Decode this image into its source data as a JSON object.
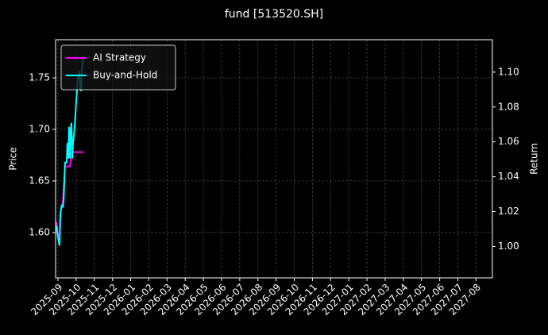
{
  "chart_data": {
    "type": "line",
    "title": "fund [513520.SH]",
    "ylabel": "Price",
    "y2label": "Return",
    "grid": true,
    "legend": "upper left",
    "xlim": [
      -0.13,
      23.9
    ],
    "xticks": [
      {
        "value": 0,
        "label": "2025-09"
      },
      {
        "value": 1,
        "label": "2025-10"
      },
      {
        "value": 2,
        "label": "2025-11"
      },
      {
        "value": 3,
        "label": "2025-12"
      },
      {
        "value": 4,
        "label": "2026-01"
      },
      {
        "value": 5,
        "label": "2026-02"
      },
      {
        "value": 6,
        "label": "2026-03"
      },
      {
        "value": 7,
        "label": "2026-04"
      },
      {
        "value": 8,
        "label": "2026-05"
      },
      {
        "value": 9,
        "label": "2026-06"
      },
      {
        "value": 10,
        "label": "2026-07"
      },
      {
        "value": 11,
        "label": "2026-08"
      },
      {
        "value": 12,
        "label": "2026-09"
      },
      {
        "value": 13,
        "label": "2026-10"
      },
      {
        "value": 14,
        "label": "2026-11"
      },
      {
        "value": 15,
        "label": "2026-12"
      },
      {
        "value": 16,
        "label": "2027-01"
      },
      {
        "value": 17,
        "label": "2027-02"
      },
      {
        "value": 18,
        "label": "2027-03"
      },
      {
        "value": 19,
        "label": "2027-04"
      },
      {
        "value": 20,
        "label": "2027-05"
      },
      {
        "value": 21,
        "label": "2027-06"
      },
      {
        "value": 22,
        "label": "2027-07"
      },
      {
        "value": 23,
        "label": "2027-08"
      }
    ],
    "ylim": [
      1.556,
      1.787
    ],
    "yticks": [
      {
        "value": 1.6,
        "label": "1.60"
      },
      1.65,
      {
        "value": 1.7,
        "label": "1.70"
      },
      1.75
    ],
    "y2lim": [
      0.982,
      1.1186
    ],
    "y2ticks": [
      {
        "value": 1.0,
        "label": "1.00"
      },
      1.02,
      1.04,
      1.06,
      1.08,
      {
        "value": 1.1,
        "label": "1.10"
      }
    ],
    "series": [
      {
        "name": "AI Strategy",
        "color": "#ff00ff",
        "axis": "y2",
        "x": [
          -0.09,
          0,
          0.09,
          0.17,
          0.26,
          0.39,
          0.48,
          0.57,
          0.66,
          0.74,
          0.83,
          0.92,
          1.09,
          1.4
        ],
        "values": [
          1.0141,
          1.0073,
          1.005,
          1.0223,
          1.0241,
          1.0459,
          1.0459,
          1.0459,
          1.0459,
          1.0527,
          1.0541,
          1.0541,
          1.0541,
          1.0541
        ]
      },
      {
        "name": "Buy-and-Hold",
        "color": "#00ffff",
        "axis": "y2",
        "x": [
          -0.09,
          0,
          0.09,
          0.13,
          0.22,
          0.26,
          0.31,
          0.39,
          0.48,
          0.52,
          0.57,
          0.61,
          0.66,
          0.7,
          0.74,
          0.79,
          0.83,
          0.92,
          1.0,
          1.09,
          1.18,
          1.22,
          1.27,
          1.31,
          1.4
        ],
        "values": [
          1.0118,
          1.005,
          1.0005,
          1.0186,
          1.0241,
          1.0223,
          1.0255,
          1.0482,
          1.0482,
          1.0595,
          1.0505,
          1.0686,
          1.0505,
          1.0664,
          1.0709,
          1.0505,
          1.0595,
          1.0686,
          1.0823,
          1.0959,
          1.1005,
          1.0914,
          1.0891,
          1.1005,
          1.1095
        ]
      }
    ]
  }
}
